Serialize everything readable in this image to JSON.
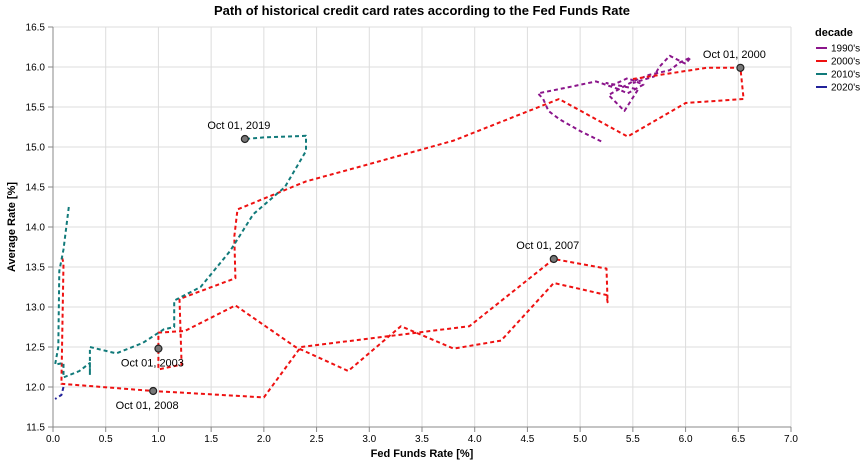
{
  "chart_data": {
    "type": "line",
    "title": "Path of historical credit card rates according to the Fed Funds Rate",
    "xlabel": "Fed Funds Rate [%]",
    "ylabel": "Average Rate [%]",
    "xlim": [
      0,
      7.0
    ],
    "ylim": [
      11.5,
      16.5
    ],
    "xticks": [
      "0.0",
      "0.5",
      "1.0",
      "1.5",
      "2.0",
      "2.5",
      "3.0",
      "3.5",
      "4.0",
      "4.5",
      "5.0",
      "5.5",
      "6.0",
      "6.5",
      "7.0"
    ],
    "yticks": [
      "11.5",
      "12.0",
      "12.5",
      "13.0",
      "13.5",
      "14.0",
      "14.5",
      "15.0",
      "15.5",
      "16.0",
      "16.5"
    ],
    "grid": true,
    "line_style": "dashed",
    "legend": {
      "title": "decade",
      "placement": "right",
      "entries": [
        {
          "label": "1990's",
          "color": "#8b158b"
        },
        {
          "label": "2000's",
          "color": "#ee1111"
        },
        {
          "label": "2010's",
          "color": "#117a7a"
        },
        {
          "label": "2020's",
          "color": "#22229a"
        }
      ]
    },
    "series": [
      {
        "name": "1990's",
        "color": "#8b158b",
        "points": [
          [
            5.2,
            15.07
          ],
          [
            5.0,
            15.2
          ],
          [
            4.8,
            15.35
          ],
          [
            4.7,
            15.45
          ],
          [
            4.65,
            15.6
          ],
          [
            4.6,
            15.67
          ],
          [
            4.9,
            15.75
          ],
          [
            5.15,
            15.82
          ],
          [
            5.35,
            15.73
          ],
          [
            5.45,
            15.67
          ],
          [
            5.6,
            15.78
          ],
          [
            5.45,
            15.86
          ],
          [
            5.3,
            15.77
          ],
          [
            5.25,
            15.8
          ],
          [
            5.55,
            15.72
          ],
          [
            5.42,
            15.45
          ],
          [
            5.27,
            15.65
          ],
          [
            5.5,
            15.82
          ],
          [
            5.65,
            15.9
          ],
          [
            5.85,
            15.96
          ],
          [
            5.95,
            16.06
          ],
          [
            6.05,
            16.12
          ],
          [
            6.0,
            16.04
          ],
          [
            5.85,
            16.14
          ],
          [
            5.75,
            16.0
          ],
          [
            5.7,
            15.88
          ],
          [
            5.5,
            15.8
          ]
        ]
      },
      {
        "name": "2000's",
        "color": "#ee1111",
        "points": [
          [
            5.5,
            15.85
          ],
          [
            6.2,
            15.99
          ],
          [
            6.52,
            15.99
          ],
          [
            6.55,
            15.6
          ],
          [
            6.0,
            15.55
          ],
          [
            5.45,
            15.13
          ],
          [
            4.8,
            15.6
          ],
          [
            3.8,
            15.08
          ],
          [
            2.9,
            14.75
          ],
          [
            2.4,
            14.57
          ],
          [
            1.75,
            14.22
          ],
          [
            1.72,
            13.88
          ],
          [
            1.73,
            13.36
          ],
          [
            1.2,
            13.1
          ],
          [
            1.22,
            12.28
          ],
          [
            1.0,
            12.22
          ],
          [
            1.0,
            12.68
          ],
          [
            1.25,
            12.7
          ],
          [
            1.73,
            13.02
          ],
          [
            2.3,
            12.5
          ],
          [
            2.8,
            12.2
          ],
          [
            3.3,
            12.76
          ],
          [
            3.8,
            12.48
          ],
          [
            4.25,
            12.58
          ],
          [
            4.75,
            13.3
          ],
          [
            5.25,
            13.15
          ],
          [
            5.26,
            13.06
          ],
          [
            5.25,
            13.48
          ],
          [
            4.75,
            13.6
          ],
          [
            3.95,
            12.76
          ],
          [
            2.35,
            12.5
          ],
          [
            2.0,
            11.87
          ],
          [
            0.95,
            11.95
          ],
          [
            0.08,
            12.04
          ],
          [
            0.1,
            13.55
          ],
          [
            0.08,
            13.65
          ]
        ]
      },
      {
        "name": "2010's",
        "color": "#117a7a",
        "points": [
          [
            0.15,
            14.25
          ],
          [
            0.1,
            13.72
          ],
          [
            0.06,
            13.45
          ],
          [
            0.05,
            12.5
          ],
          [
            0.02,
            12.28
          ],
          [
            0.1,
            12.3
          ],
          [
            0.1,
            12.12
          ],
          [
            0.25,
            12.2
          ],
          [
            0.35,
            12.3
          ],
          [
            0.35,
            12.15
          ],
          [
            0.35,
            12.5
          ],
          [
            0.6,
            12.42
          ],
          [
            0.85,
            12.55
          ],
          [
            1.05,
            12.72
          ],
          [
            1.15,
            12.75
          ],
          [
            1.15,
            13.08
          ],
          [
            1.4,
            13.25
          ],
          [
            1.68,
            13.7
          ],
          [
            1.9,
            14.16
          ],
          [
            2.2,
            14.5
          ],
          [
            2.4,
            14.95
          ],
          [
            2.4,
            15.14
          ],
          [
            2.0,
            15.12
          ],
          [
            1.82,
            15.1
          ]
        ]
      },
      {
        "name": "2020's",
        "color": "#22229a",
        "points": [
          [
            0.1,
            12.0
          ],
          [
            0.08,
            11.9
          ],
          [
            0.02,
            11.85
          ]
        ]
      }
    ],
    "annotations": [
      {
        "label": "Oct 01, 2000",
        "x": 6.52,
        "y": 15.99,
        "label_pos": "above"
      },
      {
        "label": "Oct 01, 2019",
        "x": 1.82,
        "y": 15.1,
        "label_pos": "above"
      },
      {
        "label": "Oct 01, 2007",
        "x": 4.75,
        "y": 13.6,
        "label_pos": "above"
      },
      {
        "label": "Oct 01, 2003",
        "x": 1.0,
        "y": 12.48,
        "label_pos": "below"
      },
      {
        "label": "Oct 01, 2008",
        "x": 0.95,
        "y": 11.95,
        "label_pos": "below"
      }
    ]
  }
}
